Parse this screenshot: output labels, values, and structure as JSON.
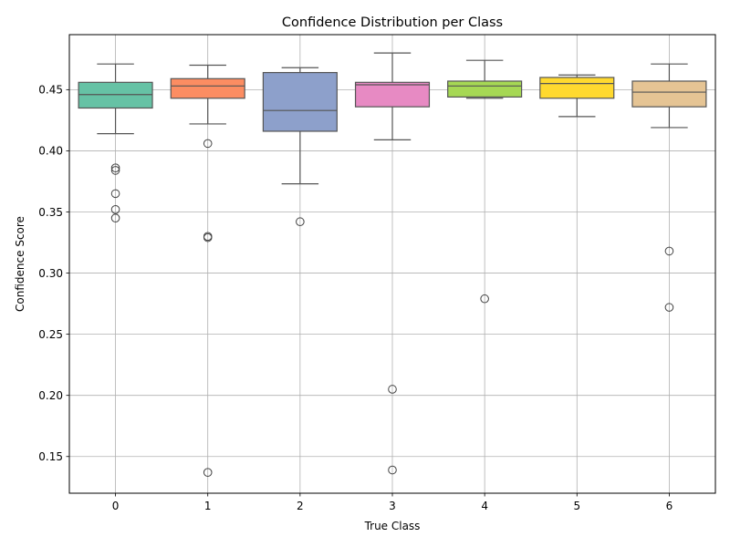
{
  "chart_data": {
    "type": "box",
    "title": "Confidence Distribution per Class",
    "xlabel": "True Class",
    "ylabel": "Confidence Score",
    "ylim": [
      0.12,
      0.495
    ],
    "yticks": [
      "0.15",
      "0.20",
      "0.25",
      "0.30",
      "0.35",
      "0.40",
      "0.45"
    ],
    "grid": true,
    "categories": [
      "0",
      "1",
      "2",
      "3",
      "4",
      "5",
      "6"
    ],
    "colors": [
      "#66c2a5",
      "#fc8d62",
      "#8da0cb",
      "#e78ac3",
      "#a6d854",
      "#ffd92f",
      "#e5c494"
    ],
    "boxes": [
      {
        "category": "0",
        "q1": 0.435,
        "median": 0.446,
        "q3": 0.456,
        "whisker_low": 0.414,
        "whisker_high": 0.471,
        "outliers": [
          0.386,
          0.384,
          0.365,
          0.352,
          0.345
        ]
      },
      {
        "category": "1",
        "q1": 0.443,
        "median": 0.453,
        "q3": 0.459,
        "whisker_low": 0.422,
        "whisker_high": 0.47,
        "outliers": [
          0.406,
          0.33,
          0.329,
          0.137
        ]
      },
      {
        "category": "2",
        "q1": 0.416,
        "median": 0.433,
        "q3": 0.464,
        "whisker_low": 0.373,
        "whisker_high": 0.468,
        "outliers": [
          0.342
        ]
      },
      {
        "category": "3",
        "q1": 0.436,
        "median": 0.454,
        "q3": 0.456,
        "whisker_low": 0.409,
        "whisker_high": 0.48,
        "outliers": [
          0.205,
          0.139
        ]
      },
      {
        "category": "4",
        "q1": 0.444,
        "median": 0.453,
        "q3": 0.457,
        "whisker_low": 0.443,
        "whisker_high": 0.474,
        "outliers": [
          0.279
        ]
      },
      {
        "category": "5",
        "q1": 0.443,
        "median": 0.455,
        "q3": 0.46,
        "whisker_low": 0.428,
        "whisker_high": 0.462,
        "outliers": []
      },
      {
        "category": "6",
        "q1": 0.436,
        "median": 0.448,
        "q3": 0.457,
        "whisker_low": 0.419,
        "whisker_high": 0.471,
        "outliers": [
          0.318,
          0.272
        ]
      }
    ]
  }
}
